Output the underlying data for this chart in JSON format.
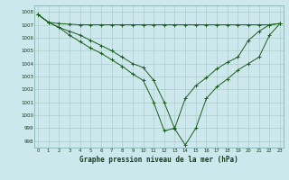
{
  "title": "Graphe pression niveau de la mer (hPa)",
  "bg_color": "#cce8ec",
  "grid_color": "#aacccc",
  "line_color": "#1a5e1a",
  "ylim": [
    997.5,
    1008.5
  ],
  "xlim": [
    -0.3,
    23.3
  ],
  "xticks": [
    0,
    1,
    2,
    3,
    4,
    5,
    6,
    7,
    8,
    9,
    10,
    11,
    12,
    13,
    14,
    15,
    16,
    17,
    18,
    19,
    20,
    21,
    22,
    23
  ],
  "yticks": [
    998,
    999,
    1000,
    1001,
    1002,
    1003,
    1004,
    1005,
    1006,
    1007,
    1008
  ],
  "line1_y": [
    1007.8,
    1007.2,
    1007.1,
    1007.05,
    1007.0,
    1007.0,
    1007.0,
    1007.0,
    1007.0,
    1007.0,
    1007.0,
    1007.0,
    1007.0,
    1007.0,
    1007.0,
    1007.0,
    1007.0,
    1007.0,
    1007.0,
    1007.0,
    1007.0,
    1007.0,
    1007.0,
    1007.1
  ],
  "line2_y": [
    1007.8,
    1007.2,
    1006.8,
    1006.5,
    1006.2,
    1005.8,
    1005.4,
    1005.0,
    1004.5,
    1004.0,
    1003.7,
    1002.7,
    1001.0,
    998.95,
    997.7,
    999.0,
    1001.3,
    1002.2,
    1002.8,
    1003.5,
    1004.0,
    1004.5,
    1006.2,
    1007.1
  ],
  "line3_y": [
    1007.8,
    1007.2,
    1006.8,
    1006.2,
    1005.7,
    1005.2,
    1004.8,
    1004.3,
    1003.8,
    1003.2,
    1002.7,
    1001.0,
    998.8,
    999.0,
    1001.3,
    1002.3,
    1002.9,
    1003.6,
    1004.1,
    1004.5,
    1005.8,
    1006.5,
    1007.0,
    1007.1
  ]
}
